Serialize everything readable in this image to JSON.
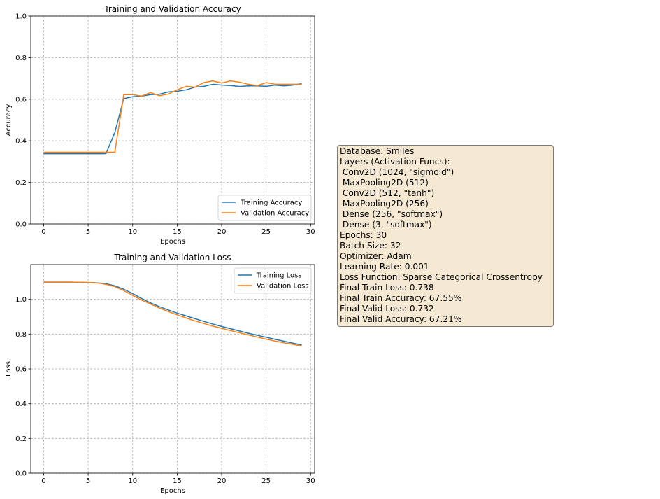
{
  "chart_data": [
    {
      "type": "line",
      "title": "Training and Validation Accuracy",
      "xlabel": "Epochs",
      "ylabel": "Accuracy",
      "xlim": [
        -1.45,
        30.45
      ],
      "ylim": [
        0,
        1.0
      ],
      "xticks": [
        0,
        5,
        10,
        15,
        20,
        25,
        30
      ],
      "yticks": [
        0.0,
        0.2,
        0.4,
        0.6,
        0.8,
        1.0
      ],
      "grid": true,
      "legend": "lower-right",
      "x": [
        0,
        1,
        2,
        3,
        4,
        5,
        6,
        7,
        8,
        9,
        10,
        11,
        12,
        13,
        14,
        15,
        16,
        17,
        18,
        19,
        20,
        21,
        22,
        23,
        24,
        25,
        26,
        27,
        28,
        29
      ],
      "series": [
        {
          "name": "Training Accuracy",
          "color": "#1f77b4",
          "values": [
            0.338,
            0.338,
            0.338,
            0.338,
            0.338,
            0.338,
            0.338,
            0.338,
            0.44,
            0.603,
            0.612,
            0.615,
            0.622,
            0.624,
            0.635,
            0.638,
            0.645,
            0.658,
            0.662,
            0.672,
            0.668,
            0.666,
            0.661,
            0.664,
            0.664,
            0.662,
            0.668,
            0.664,
            0.668,
            0.675
          ]
        },
        {
          "name": "Validation Accuracy",
          "color": "#ff7f0e",
          "values": [
            0.345,
            0.345,
            0.345,
            0.345,
            0.345,
            0.345,
            0.345,
            0.345,
            0.345,
            0.622,
            0.622,
            0.615,
            0.632,
            0.617,
            0.625,
            0.645,
            0.662,
            0.658,
            0.68,
            0.688,
            0.678,
            0.688,
            0.682,
            0.672,
            0.665,
            0.68,
            0.672,
            0.672,
            0.672,
            0.672
          ]
        }
      ]
    },
    {
      "type": "line",
      "title": "Training and Validation Loss",
      "xlabel": "Epochs",
      "ylabel": "Loss",
      "xlim": [
        -1.45,
        30.45
      ],
      "ylim": [
        0,
        1.2
      ],
      "xticks": [
        0,
        5,
        10,
        15,
        20,
        25,
        30
      ],
      "yticks": [
        0.0,
        0.2,
        0.4,
        0.6,
        0.8,
        1.0
      ],
      "grid": true,
      "legend": "top-right",
      "x": [
        0,
        1,
        2,
        3,
        4,
        5,
        6,
        7,
        8,
        9,
        10,
        11,
        12,
        13,
        14,
        15,
        16,
        17,
        18,
        19,
        20,
        21,
        22,
        23,
        24,
        25,
        26,
        27,
        28,
        29
      ],
      "series": [
        {
          "name": "Training Loss",
          "color": "#1f77b4",
          "values": [
            1.099,
            1.099,
            1.099,
            1.099,
            1.098,
            1.097,
            1.095,
            1.09,
            1.078,
            1.058,
            1.033,
            1.005,
            0.98,
            0.958,
            0.939,
            0.921,
            0.905,
            0.889,
            0.873,
            0.858,
            0.844,
            0.831,
            0.818,
            0.805,
            0.793,
            0.782,
            0.77,
            0.759,
            0.748,
            0.738
          ]
        },
        {
          "name": "Validation Loss",
          "color": "#ff7f0e",
          "values": [
            1.099,
            1.099,
            1.099,
            1.099,
            1.098,
            1.097,
            1.094,
            1.086,
            1.073,
            1.05,
            1.023,
            0.996,
            0.973,
            0.95,
            0.93,
            0.911,
            0.893,
            0.876,
            0.861,
            0.846,
            0.833,
            0.82,
            0.808,
            0.795,
            0.783,
            0.771,
            0.76,
            0.75,
            0.741,
            0.732
          ]
        }
      ]
    }
  ],
  "info_box": {
    "lines": [
      "Database: Smiles",
      "Layers (Activation Funcs):",
      " Conv2D (1024, \"sigmoid\")",
      " MaxPooling2D (512)",
      " Conv2D (512, \"tanh\")",
      " MaxPooling2D (256)",
      " Dense (256, \"softmax\")",
      " Dense (3, \"softmax\")",
      "Epochs: 30",
      "Batch Size: 32",
      "Optimizer: Adam",
      "Learning Rate: 0.001",
      "Loss Function: Sparse Categorical Crossentropy",
      "Final Train Loss: 0.738",
      "Final Train Accuracy: 67.55%",
      "Final Valid Loss: 0.732",
      "Final Valid Accuracy: 67.21%"
    ],
    "background": "#f5e9d3"
  }
}
